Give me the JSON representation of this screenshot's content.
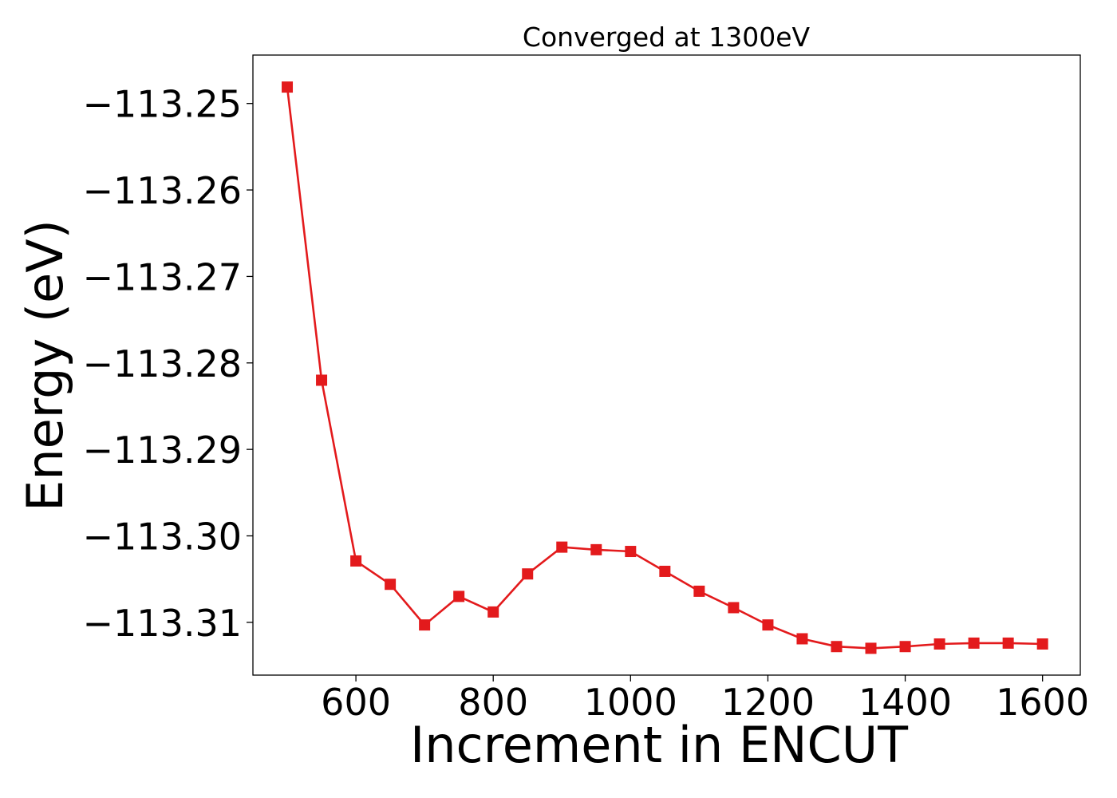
{
  "chart_data": {
    "type": "line",
    "title": "Converged at 1300eV",
    "xlabel": "Increment in ENCUT",
    "ylabel": "Energy (eV)",
    "xlim": [
      450,
      1655
    ],
    "ylim": [
      -113.3161,
      -113.2444
    ],
    "x_ticks": [
      600,
      800,
      1000,
      1200,
      1400,
      1600
    ],
    "x_tick_labels": [
      "600",
      "800",
      "1000",
      "1200",
      "1400",
      "1600"
    ],
    "y_ticks": [
      -113.25,
      -113.26,
      -113.27,
      -113.28,
      -113.29,
      -113.3,
      -113.31
    ],
    "y_tick_labels": [
      "−113.25",
      "−113.26",
      "−113.27",
      "−113.28",
      "−113.29",
      "−113.30",
      "−113.31"
    ],
    "grid": false,
    "legend": "none",
    "marker": "square",
    "color": "#e31a1c",
    "series": [
      {
        "x": [
          500,
          550,
          600,
          650,
          700,
          750,
          800,
          850,
          900,
          950,
          1000,
          1050,
          1100,
          1150,
          1200,
          1250,
          1300,
          1350,
          1400,
          1450,
          1500,
          1550,
          1600
        ],
        "values": [
          -113.2481,
          -113.282,
          -113.3029,
          -113.3056,
          -113.3103,
          -113.307,
          -113.3088,
          -113.3044,
          -113.3013,
          -113.3016,
          -113.3018,
          -113.3041,
          -113.3064,
          -113.3083,
          -113.3103,
          -113.3119,
          -113.3128,
          -113.313,
          -113.3128,
          -113.3125,
          -113.3124,
          -113.3124,
          -113.3125
        ]
      }
    ]
  }
}
